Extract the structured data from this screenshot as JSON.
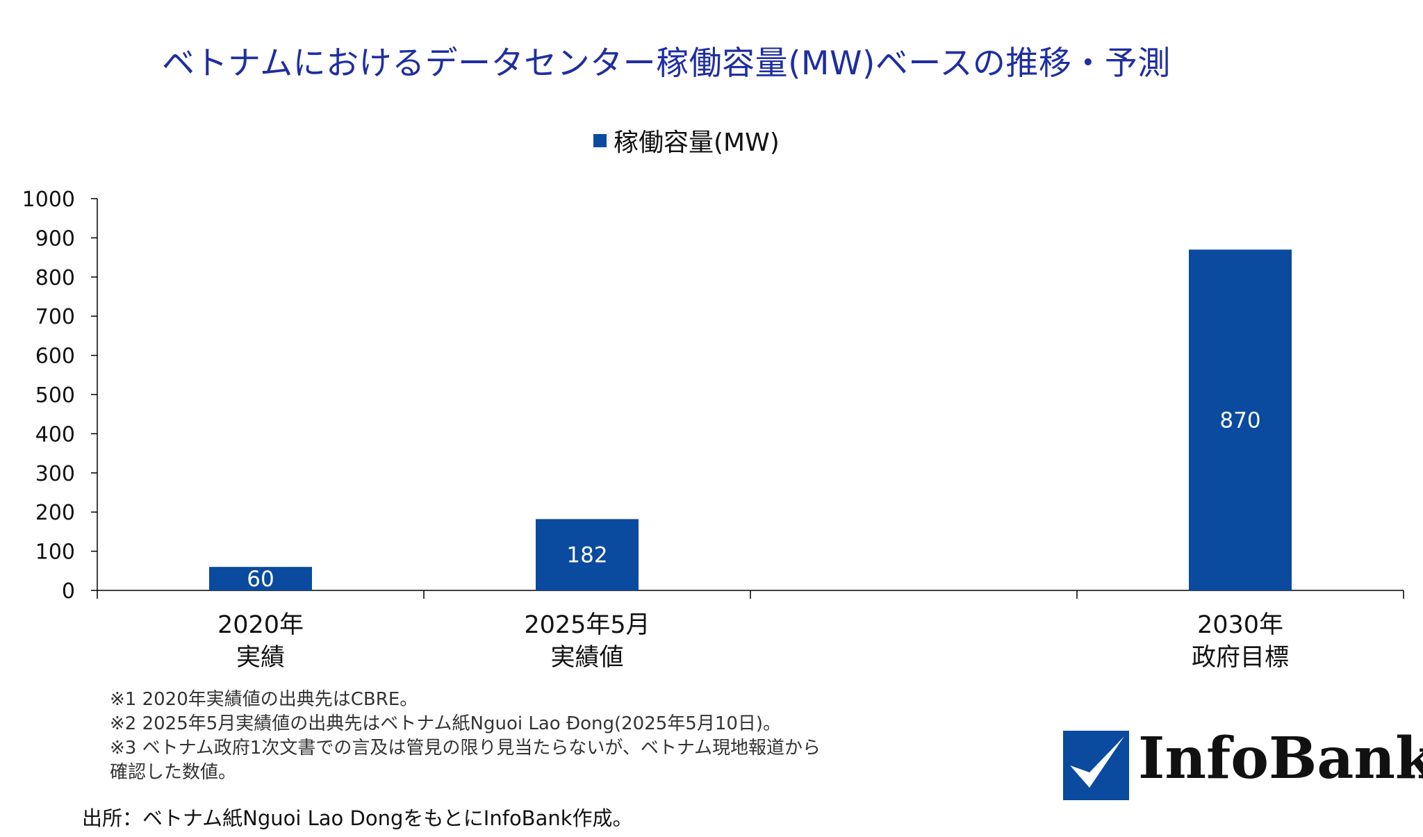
{
  "chart_data": {
    "type": "bar",
    "title": "ベトナムにおけるデータセンター稼働容量(MW)ベースの推移・予測",
    "categories": [
      [
        "2020年",
        "実績"
      ],
      [
        "2025年5月",
        "実績値"
      ],
      [
        "",
        ""
      ],
      [
        "2030年",
        "政府目標"
      ]
    ],
    "series": [
      {
        "name": "稼働容量(MW)",
        "values": [
          60,
          182,
          null,
          870
        ],
        "color": "#0a4a9f"
      }
    ],
    "data_labels": [
      "60",
      "182",
      "",
      "870"
    ],
    "ylim": [
      0,
      1000
    ],
    "yticks": [
      0,
      100,
      200,
      300,
      400,
      500,
      600,
      700,
      800,
      900,
      1000
    ],
    "xlabel": "",
    "ylabel": "",
    "grid": false,
    "legend_position": "top-center"
  },
  "notes": [
    "※1 2020年実績値の出典先はCBRE。",
    "※2 2025年5月実績値の出典先はベトナム紙Nguoi Lao Đong(2025年5月10日)。",
    "※3 ベトナム政府1次文書での言及は管見の限り見当たらないが、ベトナム現地報道から",
    "確認した数値。"
  ],
  "source": "出所：ベトナム紙Nguoi Lao DongをもとにInfoBank作成。",
  "logo": {
    "text": "InfoBank",
    "mark_color": "#0a4a9f"
  }
}
